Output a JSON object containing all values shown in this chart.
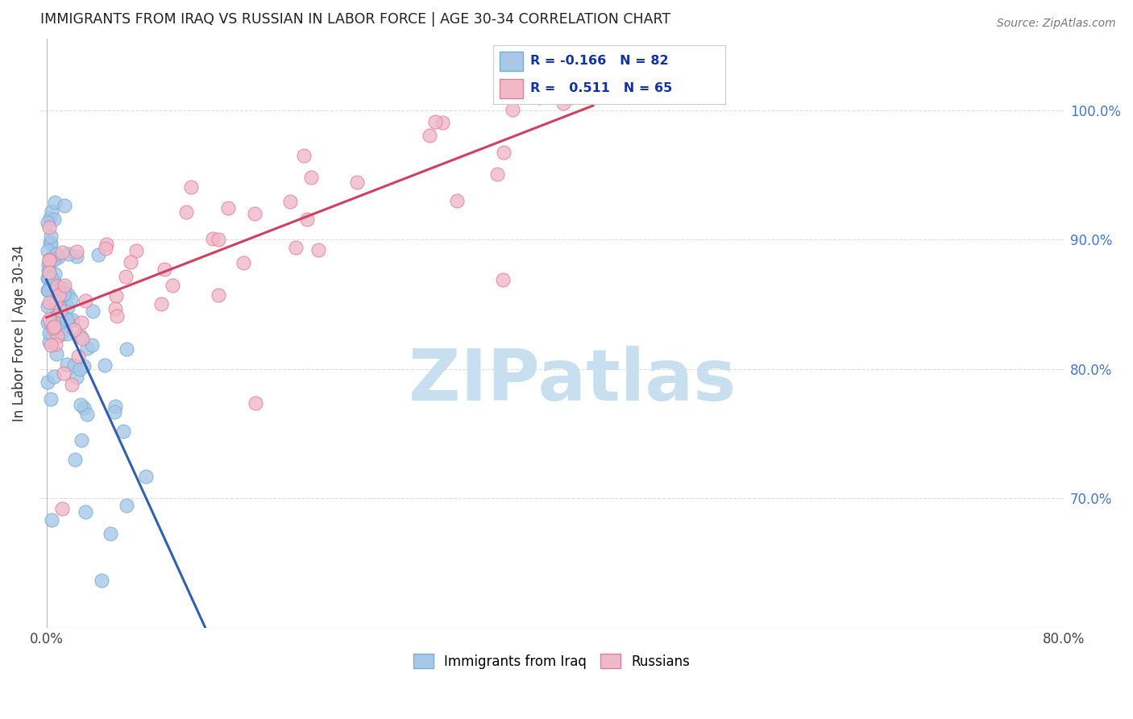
{
  "title": "IMMIGRANTS FROM IRAQ VS RUSSIAN IN LABOR FORCE | AGE 30-34 CORRELATION CHART",
  "source": "Source: ZipAtlas.com",
  "ylabel": "In Labor Force | Age 30-34",
  "x_tick_labels_outer": [
    "0.0%",
    "80.0%"
  ],
  "x_tick_positions_outer": [
    0.0,
    0.8
  ],
  "y_tick_labels": [
    "100.0%",
    "90.0%",
    "80.0%",
    "70.0%"
  ],
  "y_tick_positions": [
    1.0,
    0.9,
    0.8,
    0.7
  ],
  "xlim": [
    -0.005,
    0.8
  ],
  "ylim": [
    0.6,
    1.055
  ],
  "legend_entries": [
    "Immigrants from Iraq",
    "Russians"
  ],
  "r_iraq": -0.166,
  "n_iraq": 82,
  "r_russian": 0.511,
  "n_russian": 65,
  "iraq_scatter_color": "#a8c8e8",
  "iraq_scatter_edge": "#7aadd4",
  "russian_scatter_color": "#f0b8c8",
  "russian_scatter_edge": "#e08098",
  "iraq_line_color": "#3060b0",
  "russian_line_color": "#d04060",
  "iraq_line_ext_color": "#b0c8e0",
  "background_color": "#ffffff",
  "grid_color": "#dddddd",
  "watermark_color": "#c8dff0"
}
